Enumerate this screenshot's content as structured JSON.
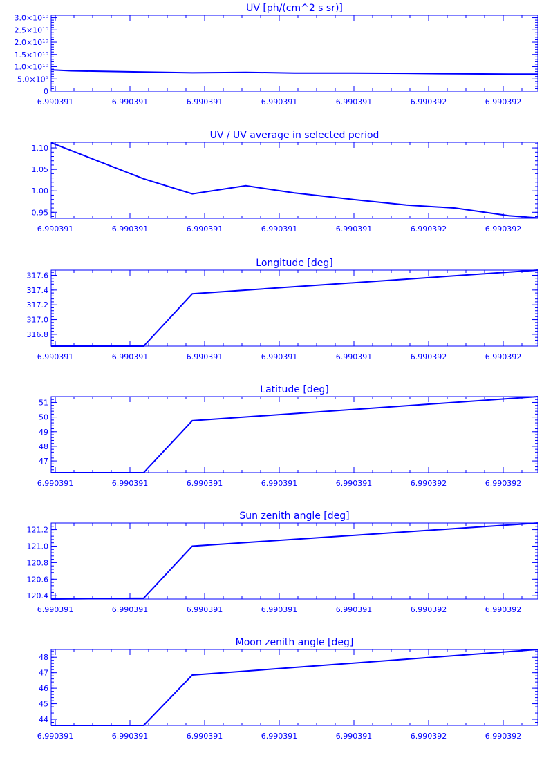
{
  "chart_data": [
    {
      "type": "line",
      "title": "UV [ph/(cm^2 s sr)]",
      "y_log_style": true,
      "ytick_labels": [
        {
          "value": 0,
          "label": "0"
        },
        {
          "value": 5000000000,
          "label": "5.0×10⁹"
        },
        {
          "value": 10000000000,
          "label": "1.0×10¹⁰"
        },
        {
          "value": 15000000000,
          "label": "1.5×10¹⁰"
        },
        {
          "value": 20000000000,
          "label": "2.0×10¹⁰"
        },
        {
          "value": 25000000000,
          "label": "2.5×10¹⁰"
        },
        {
          "value": 30000000000,
          "label": "3.0×10¹⁰"
        }
      ],
      "ylim": [
        0,
        31000000000
      ],
      "x": [
        0,
        0.04,
        0.19,
        0.29,
        0.4,
        0.5,
        0.62,
        0.73,
        0.83,
        0.94,
        1.0
      ],
      "y": [
        8700000000,
        8300000000,
        7800000000,
        7500000000,
        7700000000,
        7400000000,
        7400000000,
        7300000000,
        7100000000,
        7000000000,
        7000000000
      ],
      "xtick_labels": [
        "6.990391",
        "6.990391",
        "6.990391",
        "6.990391",
        "6.990391",
        "6.990392",
        "6.990392"
      ]
    },
    {
      "type": "line",
      "title": "UV / UV average in selected period",
      "ytick_labels": [
        {
          "value": 0.95,
          "label": "0.95"
        },
        {
          "value": 1.0,
          "label": "1.00"
        },
        {
          "value": 1.05,
          "label": "1.05"
        },
        {
          "value": 1.1,
          "label": "1.10"
        }
      ],
      "ylim": [
        0.936,
        1.113
      ],
      "x": [
        0,
        0.19,
        0.29,
        0.4,
        0.5,
        0.62,
        0.73,
        0.83,
        0.94,
        1.0
      ],
      "y": [
        1.112,
        1.028,
        0.993,
        1.012,
        0.995,
        0.98,
        0.967,
        0.96,
        0.942,
        0.937
      ],
      "xtick_labels": [
        "6.990391",
        "6.990391",
        "6.990391",
        "6.990391",
        "6.990391",
        "6.990392",
        "6.990392"
      ]
    },
    {
      "type": "line",
      "title": "Longitude [deg]",
      "ytick_labels": [
        {
          "value": 316.8,
          "label": "316.8"
        },
        {
          "value": 317.0,
          "label": "317.0"
        },
        {
          "value": 317.2,
          "label": "317.2"
        },
        {
          "value": 317.4,
          "label": "317.4"
        },
        {
          "value": 317.6,
          "label": "317.6"
        }
      ],
      "ylim": [
        316.64,
        317.67
      ],
      "x": [
        0,
        0.19,
        0.29,
        1.0
      ],
      "y": [
        316.64,
        316.64,
        317.35,
        317.67
      ],
      "xtick_labels": [
        "6.990391",
        "6.990391",
        "6.990391",
        "6.990391",
        "6.990391",
        "6.990392",
        "6.990392"
      ]
    },
    {
      "type": "line",
      "title": "Latitude [deg]",
      "ytick_labels": [
        {
          "value": 47,
          "label": "47"
        },
        {
          "value": 48,
          "label": "48"
        },
        {
          "value": 49,
          "label": "49"
        },
        {
          "value": 50,
          "label": "50"
        },
        {
          "value": 51,
          "label": "51"
        }
      ],
      "ylim": [
        46.2,
        51.4
      ],
      "x": [
        0,
        0.19,
        0.29,
        1.0
      ],
      "y": [
        46.2,
        46.2,
        49.75,
        51.4
      ],
      "xtick_labels": [
        "6.990391",
        "6.990391",
        "6.990391",
        "6.990391",
        "6.990391",
        "6.990392",
        "6.990392"
      ]
    },
    {
      "type": "line",
      "title": "Sun zenith angle [deg]",
      "ytick_labels": [
        {
          "value": 120.4,
          "label": "120.4"
        },
        {
          "value": 120.6,
          "label": "120.6"
        },
        {
          "value": 120.8,
          "label": "120.8"
        },
        {
          "value": 121.0,
          "label": "121.0"
        },
        {
          "value": 121.2,
          "label": "121.2"
        }
      ],
      "ylim": [
        120.36,
        121.28
      ],
      "x": [
        0,
        0.19,
        0.29,
        1.0
      ],
      "y": [
        120.36,
        120.37,
        121.0,
        121.28
      ],
      "xtick_labels": [
        "6.990391",
        "6.990391",
        "6.990391",
        "6.990391",
        "6.990391",
        "6.990392",
        "6.990392"
      ]
    },
    {
      "type": "line",
      "title": "Moon zenith angle [deg]",
      "ytick_labels": [
        {
          "value": 44,
          "label": "44"
        },
        {
          "value": 45,
          "label": "45"
        },
        {
          "value": 46,
          "label": "46"
        },
        {
          "value": 47,
          "label": "47"
        },
        {
          "value": 48,
          "label": "48"
        }
      ],
      "ylim": [
        43.6,
        48.5
      ],
      "x": [
        0,
        0.19,
        0.29,
        1.0
      ],
      "y": [
        43.6,
        43.6,
        46.85,
        48.5
      ],
      "xtick_labels": [
        "6.990391",
        "6.990391",
        "6.990391",
        "6.990391",
        "6.990391",
        "6.990392",
        "6.990392"
      ]
    }
  ]
}
